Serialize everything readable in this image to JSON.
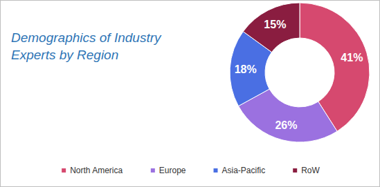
{
  "chart_data": {
    "type": "pie",
    "title": "Demographics of Industry\nExperts by Region",
    "categories": [
      "North America",
      "Europe",
      "Asia-Pacific",
      "RoW"
    ],
    "values": [
      41,
      26,
      18,
      15
    ],
    "value_labels": [
      "41%",
      "26%",
      "18%",
      "15%"
    ],
    "colors": [
      "#d6496f",
      "#9b71e0",
      "#4a6fe3",
      "#8a1d40"
    ],
    "data_labels": true,
    "legend": "bottom"
  }
}
